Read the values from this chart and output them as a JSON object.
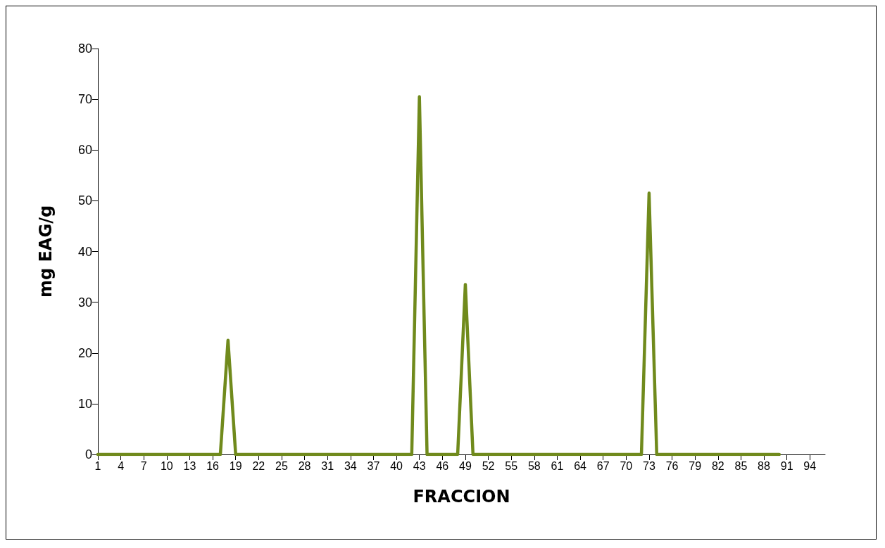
{
  "chart_data": {
    "type": "line",
    "xlabel": "FRACCION",
    "ylabel": "mg EAG/g",
    "categories": [
      "1",
      null,
      null,
      "4",
      null,
      null,
      "7",
      null,
      null,
      "10",
      null,
      null,
      "13",
      null,
      null,
      "16",
      null,
      null,
      "19",
      null,
      null,
      "22",
      null,
      null,
      "25",
      null,
      null,
      "28",
      null,
      null,
      "31",
      null,
      null,
      "34",
      null,
      null,
      "37",
      null,
      null,
      "40",
      null,
      null,
      "43",
      null,
      null,
      "46",
      null,
      null,
      "49",
      null,
      null,
      "52",
      null,
      null,
      "55",
      null,
      null,
      "58",
      null,
      null,
      "61",
      null,
      null,
      "64",
      null,
      null,
      "67",
      null,
      null,
      "70",
      null,
      null,
      "73",
      null,
      null,
      "76",
      null,
      null,
      "79",
      null,
      null,
      "82",
      null,
      null,
      "85",
      null,
      null,
      "88",
      null,
      null,
      "91",
      null,
      null,
      "94",
      null,
      null
    ],
    "series": [
      {
        "color": "#708a1c",
        "values": [
          0,
          0,
          0,
          0,
          0,
          0,
          0,
          0,
          0,
          0,
          0,
          0,
          0,
          0,
          0,
          0,
          0,
          22.5,
          0,
          0,
          0,
          0,
          0,
          0,
          0,
          0,
          0,
          0,
          0,
          0,
          0,
          0,
          0,
          0,
          0,
          0,
          0,
          0,
          0,
          0,
          0,
          0,
          70.5,
          0,
          0,
          0,
          0,
          0,
          33.5,
          0,
          0,
          0,
          0,
          0,
          0,
          0,
          0,
          0,
          0,
          0,
          0,
          0,
          0,
          0,
          0,
          0,
          0,
          0,
          0,
          0,
          0,
          0,
          51.5,
          0,
          0,
          0,
          0,
          0,
          0,
          0,
          0,
          0,
          0,
          0,
          0,
          0,
          0,
          0,
          0,
          0,
          null,
          null,
          null,
          null,
          null,
          null
        ]
      }
    ],
    "ylim": [
      0,
      80
    ],
    "yticks": [
      0,
      10,
      20,
      30,
      40,
      50,
      60,
      70,
      80
    ],
    "grid": false,
    "marker": "none",
    "line_style": "solid"
  }
}
